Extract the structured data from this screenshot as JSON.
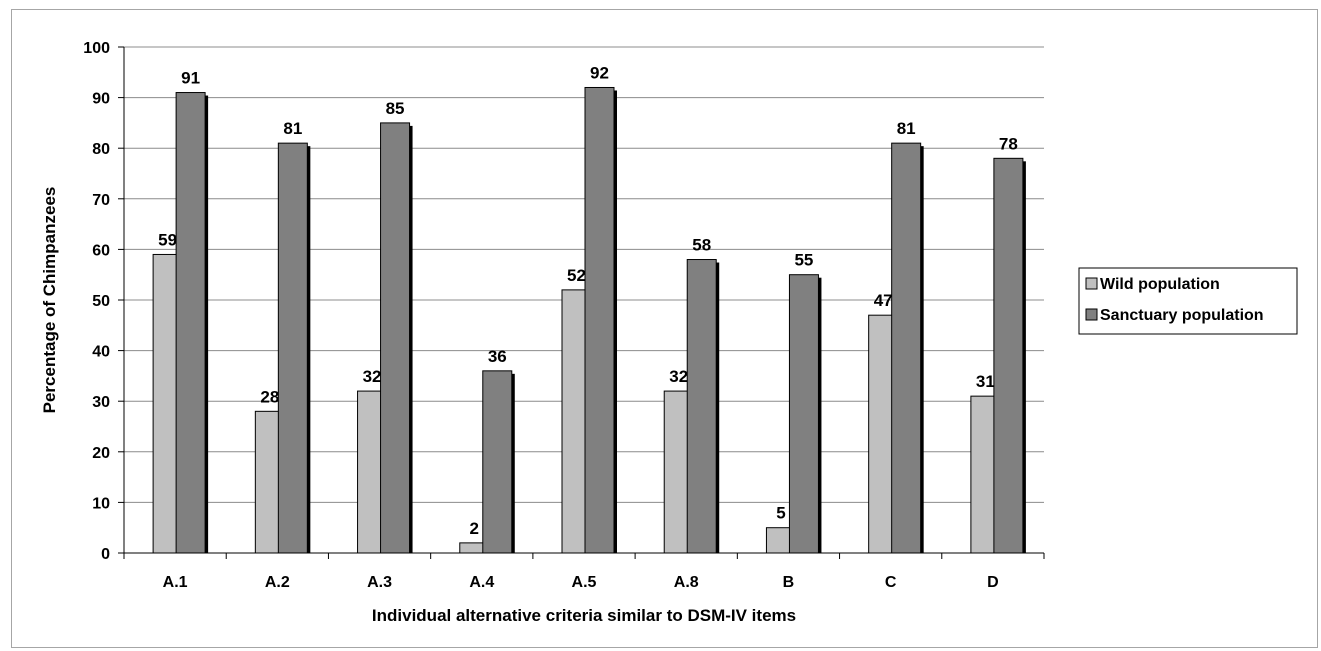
{
  "chart_data": {
    "type": "bar",
    "categories": [
      "A.1",
      "A.2",
      "A.3",
      "A.4",
      "A.5",
      "A.8",
      "B",
      "C",
      "D"
    ],
    "series": [
      {
        "name": "Wild population",
        "values": [
          59,
          28,
          32,
          2,
          52,
          32,
          5,
          47,
          31
        ],
        "color": "#c0c0c0"
      },
      {
        "name": "Sanctuary population",
        "values": [
          91,
          81,
          85,
          36,
          92,
          58,
          55,
          81,
          78
        ],
        "color": "#808080"
      }
    ],
    "xlabel": "Individual alternative criteria similar to DSM-IV items",
    "ylabel": "Percentage of Chimpanzees",
    "ylim": [
      0,
      100
    ],
    "yticks": [
      0,
      10,
      20,
      30,
      40,
      50,
      60,
      70,
      80,
      90,
      100
    ],
    "grid": true,
    "data_labels": true,
    "legend_position": "right"
  }
}
